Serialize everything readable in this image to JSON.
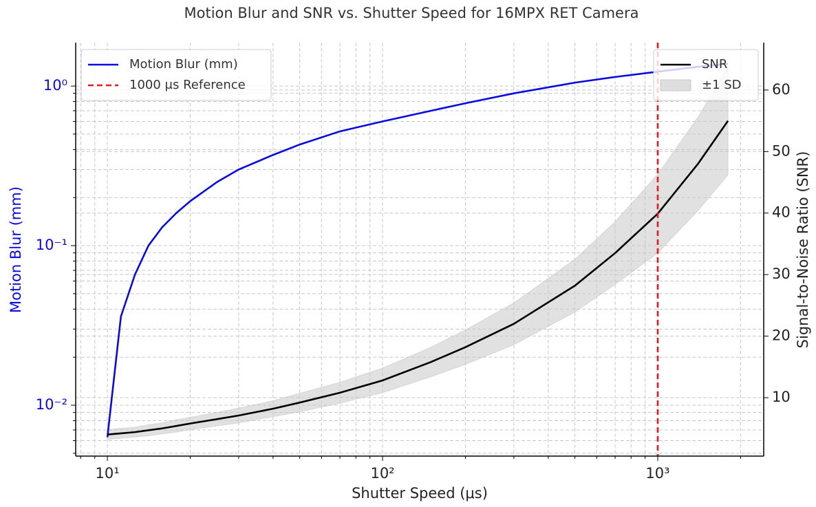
{
  "chart_data": {
    "type": "line",
    "title": "Motion Blur and SNR vs. Shutter Speed for 16MPX RET Camera",
    "xlabel": "Shutter Speed (μs)",
    "ylabel": "Motion Blur (mm)",
    "y2label": "Signal-to-Noise Ratio (SNR)",
    "xscale": "log",
    "yscale": "log",
    "x": [
      10,
      11.2,
      12.6,
      14.1,
      15.8,
      17.8,
      20,
      25,
      30,
      40,
      50,
      70,
      100,
      150,
      200,
      300,
      500,
      700,
      1000,
      1400,
      1800
    ],
    "series": [
      {
        "name": "Motion Blur (mm)",
        "color": "#0a0ae0",
        "axis": "y",
        "values": [
          0.0063,
          0.036,
          0.066,
          0.1,
          0.13,
          0.16,
          0.19,
          0.25,
          0.3,
          0.37,
          0.43,
          0.52,
          0.6,
          0.7,
          0.78,
          0.9,
          1.05,
          1.14,
          1.23,
          1.32,
          1.38
        ]
      },
      {
        "name": "SNR",
        "color": "#000000",
        "axis": "y2",
        "values": [
          4,
          4.2,
          4.4,
          4.7,
          5.0,
          5.4,
          5.8,
          6.5,
          7.1,
          8.2,
          9.2,
          10.8,
          12.8,
          15.8,
          18.2,
          22,
          28.2,
          33.5,
          39.9,
          48,
          55
        ]
      }
    ],
    "band": {
      "name": "±1 SD",
      "color": "#c8c8c8",
      "of": 1,
      "sd": [
        0.8,
        0.8,
        0.8,
        0.9,
        0.9,
        1.0,
        1.0,
        1.1,
        1.2,
        1.3,
        1.5,
        1.7,
        2.0,
        2.4,
        2.8,
        3.4,
        4.3,
        5.1,
        6.4,
        7.6,
        8.8
      ]
    },
    "reference": {
      "x": 1000,
      "label": "1000 μs Reference",
      "color": "#e41a1c"
    },
    "xlim": [
      7.67,
      2427
    ],
    "xticks": [
      {
        "value": 10,
        "label": "10¹"
      },
      {
        "value": 100,
        "label": "10²"
      },
      {
        "value": 1000,
        "label": "10³"
      }
    ],
    "xminorticks": [
      8,
      9,
      20,
      30,
      40,
      50,
      60,
      70,
      80,
      90,
      200,
      300,
      400,
      500,
      600,
      700,
      800,
      900,
      2000
    ],
    "ylim": [
      0.0048,
      1.87
    ],
    "yticks": [
      {
        "value": 0.01,
        "label": "10⁻²"
      },
      {
        "value": 0.1,
        "label": "10⁻¹"
      },
      {
        "value": 1,
        "label": "10⁰"
      }
    ],
    "yminorticks": [
      0.005,
      0.006,
      0.007,
      0.008,
      0.009,
      0.02,
      0.03,
      0.04,
      0.05,
      0.06,
      0.07,
      0.08,
      0.09,
      0.2,
      0.3,
      0.4,
      0.5,
      0.6,
      0.7,
      0.8,
      0.9
    ],
    "y2lim": [
      0.5,
      67.7
    ],
    "y2ticks": [
      10,
      20,
      30,
      40,
      50,
      60
    ],
    "grid": true,
    "legend": "upper left",
    "legend2": "upper right"
  }
}
